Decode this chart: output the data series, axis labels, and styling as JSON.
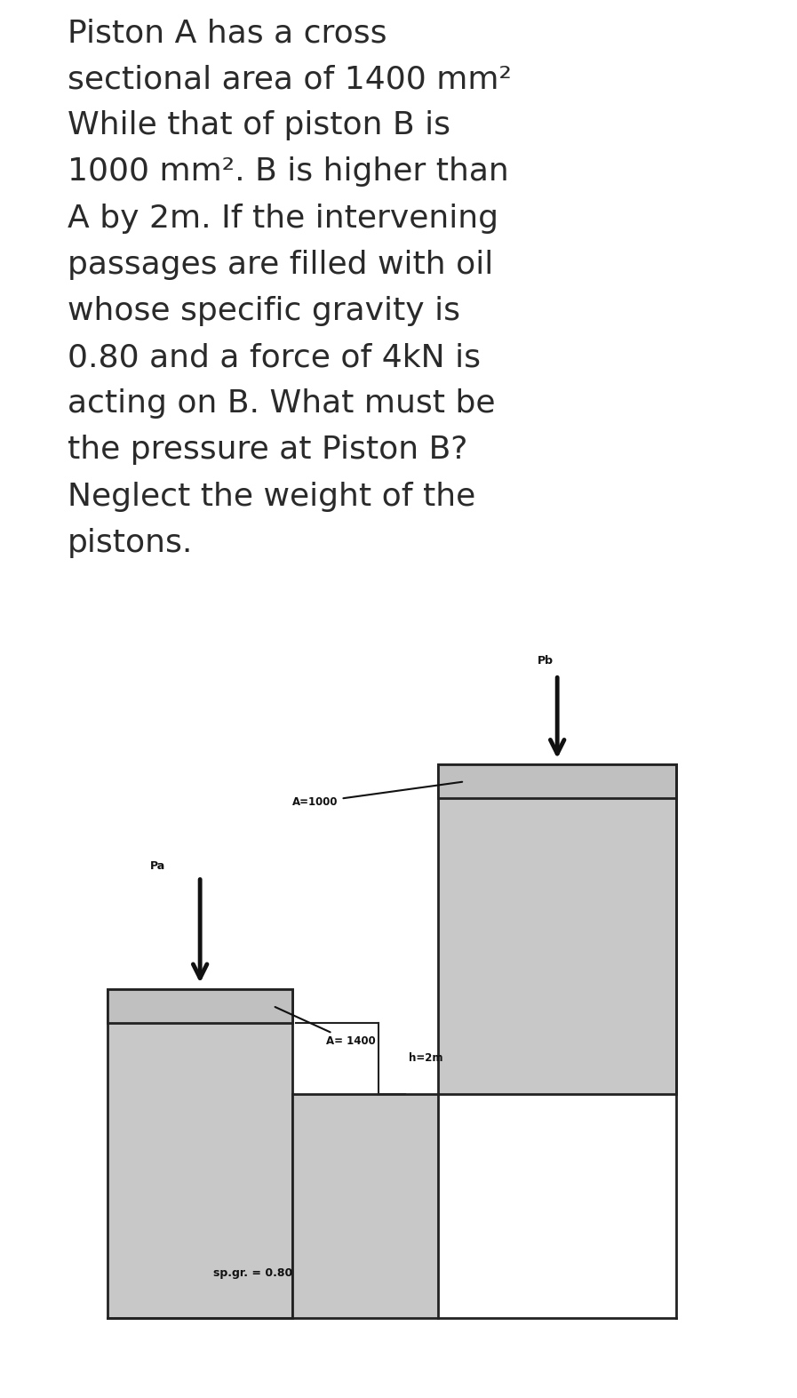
{
  "bg_color": "#ffffff",
  "diagram_bg": "#8db85a",
  "piston_fill": "#c0c0c0",
  "piston_dark": "#888888",
  "fluid_fill": "#c8c8c8",
  "wall_color": "#222222",
  "arrow_color": "#111111",
  "label_Pa": "Pa",
  "label_Pb": "Pb",
  "label_A_a": "A= 1400",
  "label_A_b": "A=1000",
  "label_h": "h=2m",
  "label_sp": "sp.gr. = 0.80",
  "text_color": "#2a2a2a",
  "diagram_label_color": "#111111",
  "text_lines": [
    "Piston A has a cross",
    "sectional area of 1400 mm²",
    "While that of piston B is",
    "1000 mm². B is higher than",
    "A by 2m. If the intervening",
    "passages are filled with oil",
    "whose specific gravity is",
    "0.80 and a force of 4kN is",
    "acting on B. What must be",
    "the pressure at Piston B?",
    "Neglect the weight of the",
    "pistons."
  ]
}
